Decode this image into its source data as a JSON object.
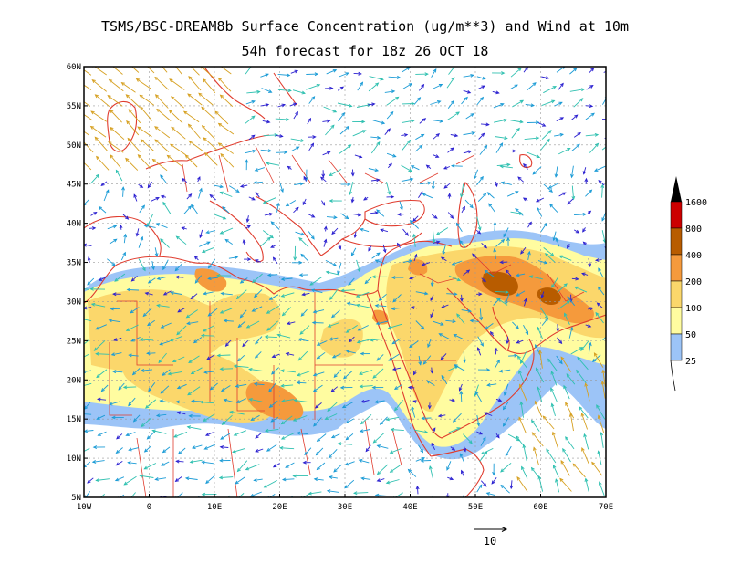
{
  "title": {
    "line1": "TSMS/BSC-DREAM8b Surface Concentration (ug/m**3) and Wind at 10m",
    "line2": "54h forecast for 18z 26 OCT 18"
  },
  "map": {
    "lat_range": [
      5,
      60
    ],
    "lon_range": [
      -10,
      70
    ],
    "lat_ticks": [
      "60N",
      "55N",
      "50N",
      "45N",
      "40N",
      "35N",
      "30N",
      "25N",
      "20N",
      "15N",
      "10N",
      "5N"
    ],
    "lon_ticks": [
      "10W",
      "0",
      "10E",
      "20E",
      "30E",
      "40E",
      "50E",
      "60E",
      "70E"
    ],
    "grid": true
  },
  "colorbar": {
    "levels": [
      "1600",
      "800",
      "400",
      "200",
      "100",
      "50",
      "25"
    ],
    "colors": [
      "#000000",
      "#cc0000",
      "#b85c00",
      "#f59a3c",
      "#fbd76b",
      "#fffca0",
      "#9cc4f7"
    ]
  },
  "reference_arrow": {
    "label": "10"
  },
  "colors": {
    "coast": "#e03c2e",
    "wind_weak": "#2a1fd0",
    "wind_mid": "#1a9bd6",
    "wind_strong": "#2ec0b0",
    "wind_gale": "#d6a020"
  }
}
